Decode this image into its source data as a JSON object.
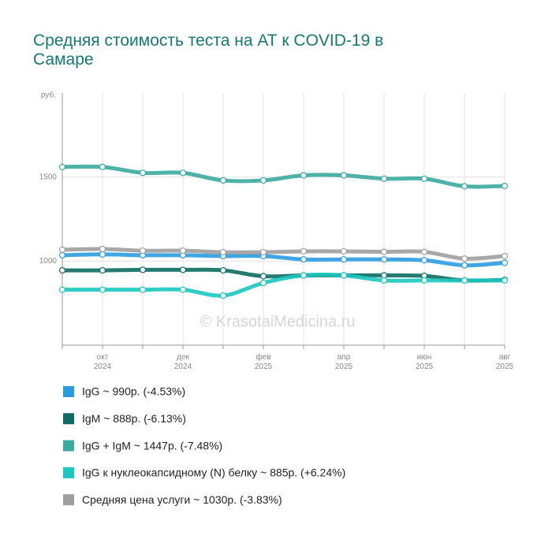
{
  "chart_data": {
    "type": "line",
    "title": "Средняя стоимость теста на АТ к COVID-19 в Самаре",
    "y_label": "руб.",
    "watermark": "© KrasotaiMedicina.ru",
    "categories": [
      null,
      "окт 2024",
      null,
      "дек 2024",
      null,
      "фев 2025",
      null,
      "апр 2025",
      null,
      "июн 2025",
      null,
      "авг 2025"
    ],
    "ylim": [
      500,
      2000
    ],
    "yticks": [
      1000,
      1500
    ],
    "grid": true,
    "series": [
      {
        "name": "IgG ~ 990р. (-4.53%)",
        "color": "#2b9be0",
        "values": [
          1035,
          1040,
          1035,
          1035,
          1030,
          1030,
          1010,
          1010,
          1010,
          1005,
          975,
          990
        ]
      },
      {
        "name": "IgM ~ 888р. (-6.13%)",
        "color": "#0d6b63",
        "values": [
          945,
          945,
          948,
          948,
          945,
          910,
          915,
          915,
          915,
          912,
          885,
          888
        ]
      },
      {
        "name": "IgG + IgM ~ 1447р. (-7.48%)",
        "color": "#3aaa9e",
        "values": [
          1560,
          1560,
          1525,
          1525,
          1480,
          1480,
          1510,
          1510,
          1490,
          1490,
          1445,
          1447
        ]
      },
      {
        "name": "IgG к нуклеокапсидному (N) белку ~ 885р. (+6.24%)",
        "color": "#19c6c0",
        "values": [
          830,
          830,
          830,
          830,
          795,
          870,
          915,
          915,
          885,
          885,
          885,
          885
        ]
      },
      {
        "name": "Средняя цена услуги ~ 1030р. (-3.83%)",
        "color": "#9e9e9e",
        "values": [
          1068,
          1072,
          1062,
          1062,
          1053,
          1053,
          1058,
          1058,
          1055,
          1055,
          1015,
          1030
        ]
      }
    ]
  }
}
